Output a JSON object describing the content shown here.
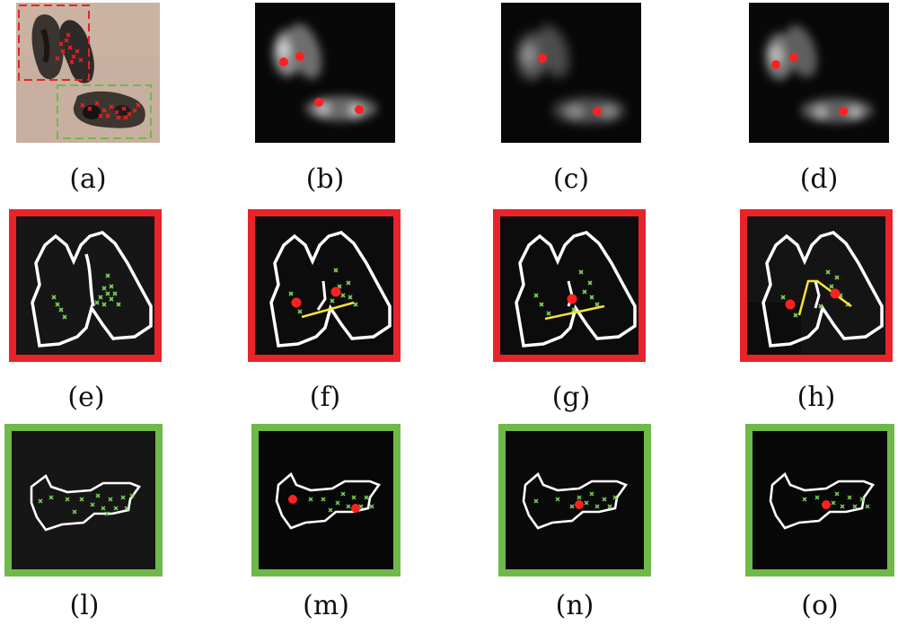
{
  "captions": {
    "a": "(a)",
    "b": "(b)",
    "c": "(c)",
    "d": "(d)",
    "e": "(e)",
    "f": "(f)",
    "g": "(g)",
    "h": "(h)",
    "l": "(l)",
    "m": "(m)",
    "n": "(n)",
    "o": "(o)"
  },
  "colors": {
    "red_frame": "#e8232a",
    "green_frame": "#6fb94a",
    "contour": "#ffffff",
    "marker_red": "#ff2020",
    "marker_green": "#7cd35a",
    "line_yellow": "#f4e43a",
    "photo_bg": "#c4ad9b"
  },
  "markers_legend": {
    "red-dot": "detected center",
    "green-x": "feature point",
    "yellow-line": "split line"
  }
}
